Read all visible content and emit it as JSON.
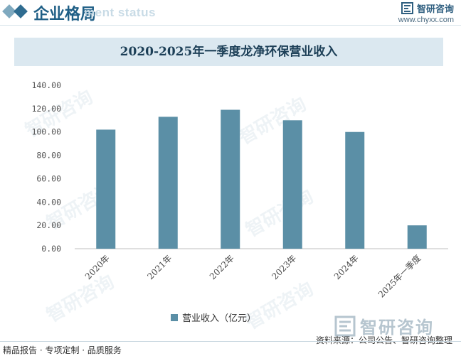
{
  "header": {
    "title": "企业格局",
    "subtitle_watermark": "ment status"
  },
  "logo": {
    "name": "智研咨询",
    "url": "www.chyxx.com"
  },
  "chart_data": {
    "type": "bar",
    "title": "2020-2025年一季度龙净环保营业收入",
    "categories": [
      "2020年",
      "2021年",
      "2022年",
      "2023年",
      "2024年",
      "2025年一季度"
    ],
    "series": [
      {
        "name": "营业收入（亿元）",
        "values": [
          102,
          113,
          119,
          110,
          100,
          20
        ]
      }
    ],
    "ylim": [
      0,
      140
    ],
    "yticks": [
      "0.00",
      "20.00",
      "40.00",
      "60.00",
      "80.00",
      "100.00",
      "120.00",
      "140.00"
    ],
    "grid": false,
    "legend_position": "bottom",
    "bar_color": "#5b8fa6"
  },
  "footer": {
    "left": "精品报告 · 专项定制 · 品质服务",
    "right": "资料来源：公司公告、智研咨询整理",
    "brand": "智研咨询"
  }
}
